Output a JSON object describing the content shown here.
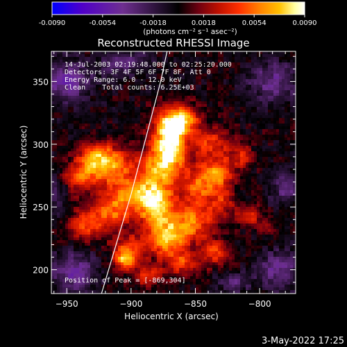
{
  "chart_data": {
    "type": "heatmap",
    "title": "Reconstructed RHESSI Image",
    "xlabel": "Heliocentric X (arcsec)",
    "ylabel": "Heliocentric Y (arcsec)",
    "xlim": [
      -962,
      -772
    ],
    "ylim": [
      181,
      374
    ],
    "xticks": [
      -950,
      -900,
      -850,
      -800
    ],
    "yticks": [
      200,
      250,
      300,
      350
    ],
    "colorbar": {
      "ticks": [
        "-0.0090",
        "-0.0054",
        "-0.0018",
        "0.0018",
        "0.0054",
        "0.0090"
      ],
      "range": [
        -0.009,
        0.009
      ],
      "units_line": "(photons cm⁻² s⁻¹ asec⁻²)",
      "colors": [
        "#0000ff",
        "#5000c8",
        "#6e2f90",
        "#000000",
        "#6e0010",
        "#c01000",
        "#ff3000",
        "#ff8000",
        "#ffc000",
        "#ffffa0",
        "#ffffff"
      ]
    },
    "annotations": [
      "14-Jul-2003 02:19:48.000 to 02:25:20.000",
      "Detectors: 3F 4F 5F 6F 7F 8F, Att 0",
      "Energy Range: 6.0 - 12.0 keV",
      "Clean    Total counts: 6.25E+03"
    ],
    "peak_label": "Position of Peak = [-869,304]",
    "peak": {
      "x": -869,
      "y": 304,
      "value": 0.009
    },
    "limb": [
      [
        -923,
        181
      ],
      [
        -900,
        260
      ],
      [
        -877,
        350
      ],
      [
        -872,
        374
      ]
    ],
    "sources": [
      {
        "x": -870,
        "y": 302,
        "sx": 9,
        "sy": 14,
        "amp": 1.0
      },
      {
        "x": -878,
        "y": 282,
        "sx": 12,
        "sy": 10,
        "amp": 0.55
      },
      {
        "x": -866,
        "y": 318,
        "sx": 8,
        "sy": 8,
        "amp": 0.6
      },
      {
        "x": -918,
        "y": 284,
        "sx": 12,
        "sy": 10,
        "amp": 0.75
      },
      {
        "x": -940,
        "y": 274,
        "sx": 10,
        "sy": 8,
        "amp": 0.5
      },
      {
        "x": -930,
        "y": 292,
        "sx": 8,
        "sy": 7,
        "amp": 0.4
      },
      {
        "x": -880,
        "y": 251,
        "sx": 10,
        "sy": 14,
        "amp": 0.85
      },
      {
        "x": -898,
        "y": 262,
        "sx": 12,
        "sy": 9,
        "amp": 0.6
      },
      {
        "x": -915,
        "y": 246,
        "sx": 12,
        "sy": 10,
        "amp": 0.55
      },
      {
        "x": -936,
        "y": 236,
        "sx": 9,
        "sy": 9,
        "amp": 0.45
      },
      {
        "x": -848,
        "y": 264,
        "sx": 10,
        "sy": 12,
        "amp": 0.5
      },
      {
        "x": -855,
        "y": 236,
        "sx": 14,
        "sy": 10,
        "amp": 0.6
      },
      {
        "x": -833,
        "y": 276,
        "sx": 9,
        "sy": 8,
        "amp": 0.6
      },
      {
        "x": -828,
        "y": 254,
        "sx": 7,
        "sy": 8,
        "amp": 0.35
      },
      {
        "x": -872,
        "y": 222,
        "sx": 10,
        "sy": 9,
        "amp": 0.55
      },
      {
        "x": -902,
        "y": 216,
        "sx": 8,
        "sy": 8,
        "amp": 0.5
      },
      {
        "x": -860,
        "y": 205,
        "sx": 9,
        "sy": 7,
        "amp": 0.45
      },
      {
        "x": -835,
        "y": 213,
        "sx": 8,
        "sy": 7,
        "amp": 0.45
      },
      {
        "x": -905,
        "y": 208,
        "sx": 5,
        "sy": 5,
        "amp": 0.6
      },
      {
        "x": -838,
        "y": 300,
        "sx": 10,
        "sy": 9,
        "amp": 0.45
      },
      {
        "x": -815,
        "y": 290,
        "sx": 7,
        "sy": 7,
        "amp": 0.35
      },
      {
        "x": -855,
        "y": 320,
        "sx": 7,
        "sy": 7,
        "amp": 0.4
      },
      {
        "x": -808,
        "y": 244,
        "sx": 6,
        "sy": 6,
        "amp": 0.35
      },
      {
        "x": -795,
        "y": 236,
        "sx": 5,
        "sy": 5,
        "amp": 0.25
      },
      {
        "x": -888,
        "y": 196,
        "sx": 8,
        "sy": 6,
        "amp": 0.4
      }
    ],
    "negatives": [
      {
        "x": -950,
        "y": 350,
        "sx": 14,
        "sy": 12,
        "amp": 0.45
      },
      {
        "x": -945,
        "y": 198,
        "sx": 12,
        "sy": 12,
        "amp": 0.45
      },
      {
        "x": -790,
        "y": 350,
        "sx": 14,
        "sy": 12,
        "amp": 0.4
      },
      {
        "x": -785,
        "y": 200,
        "sx": 12,
        "sy": 12,
        "amp": 0.4
      },
      {
        "x": -905,
        "y": 365,
        "sx": 12,
        "sy": 8,
        "amp": 0.35
      },
      {
        "x": -780,
        "y": 265,
        "sx": 8,
        "sy": 10,
        "amp": 0.35
      },
      {
        "x": -958,
        "y": 260,
        "sx": 6,
        "sy": 12,
        "amp": 0.3
      },
      {
        "x": -820,
        "y": 190,
        "sx": 10,
        "sy": 6,
        "amp": 0.3
      }
    ]
  },
  "footer_timestamp": "3-May-2022 17:25"
}
